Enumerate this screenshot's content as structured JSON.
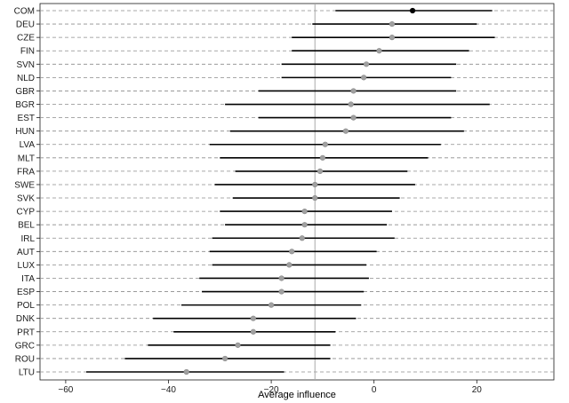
{
  "chart_data": {
    "type": "dot-interval",
    "orientation": "horizontal",
    "xlabel": "Average influence",
    "ylabel": "",
    "xlim": [
      -65,
      35
    ],
    "xticks": [
      -60,
      -40,
      -20,
      0,
      20
    ],
    "reference_line": -11.5,
    "grid": "dashed horizontal per category",
    "legend": "none",
    "colors": {
      "highlight_point": "#000000",
      "point": "#a0a0a0",
      "interval": "#000000",
      "reference": "#a8a8a8",
      "gridline": "#8c8c8c"
    },
    "categories": [
      "COM",
      "DEU",
      "CZE",
      "FIN",
      "SVN",
      "NLD",
      "GBR",
      "BGR",
      "EST",
      "HUN",
      "LVA",
      "MLT",
      "FRA",
      "SWE",
      "SVK",
      "CYP",
      "BEL",
      "IRL",
      "AUT",
      "LUX",
      "ITA",
      "ESP",
      "POL",
      "DNK",
      "PRT",
      "GRC",
      "ROU",
      "LTU"
    ],
    "estimates": [
      7.5,
      3.5,
      3.5,
      1,
      -1.5,
      -2,
      -4,
      -4.5,
      -4,
      -5.5,
      -9.5,
      -10,
      -10.5,
      -11.5,
      -11.5,
      -13.5,
      -13.5,
      -14,
      -16,
      -16.5,
      -18,
      -18,
      -20,
      -23.5,
      -23.5,
      -26.5,
      -29,
      -36.5
    ],
    "lower": [
      -7.5,
      -12,
      -16,
      -16,
      -18,
      -18,
      -22.5,
      -29,
      -22.5,
      -28,
      -32,
      -30,
      -27,
      -31,
      -27.5,
      -30,
      -29,
      -31.5,
      -32,
      -31.5,
      -34,
      -33.5,
      -37.5,
      -43,
      -39,
      -44,
      -48.5,
      -56
    ],
    "upper": [
      23,
      20,
      23.5,
      18.5,
      16,
      15,
      16,
      22.5,
      15,
      17.5,
      13,
      10.5,
      6.5,
      8,
      5,
      3.5,
      2.5,
      4,
      0.5,
      -1.5,
      -1,
      -2,
      -2.5,
      -3.5,
      -7.5,
      -8.5,
      -8.5,
      -17.5
    ],
    "highlight": "COM"
  }
}
